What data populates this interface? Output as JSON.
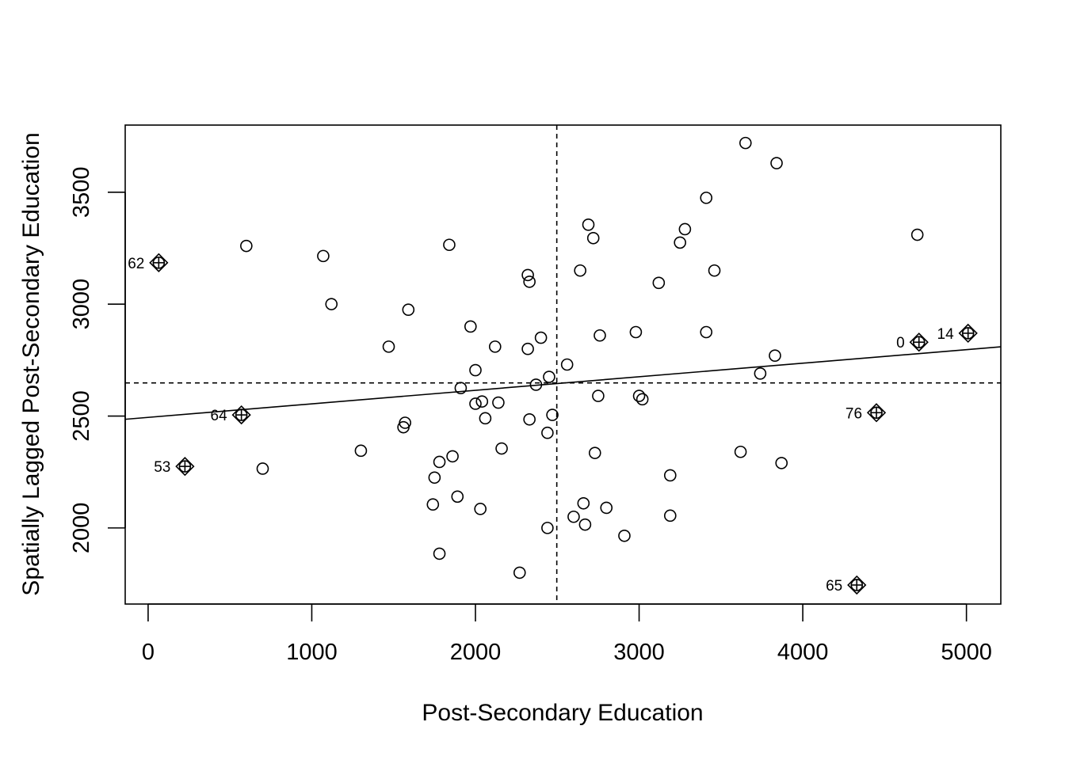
{
  "chart_data": {
    "type": "scatter",
    "title": "",
    "xlabel": "Post-Secondary Education",
    "ylabel": "Spatially Lagged Post-Secondary Education",
    "xlim": [
      -140,
      5210
    ],
    "ylim": [
      1660,
      3800
    ],
    "xticks": [
      0,
      1000,
      2000,
      3000,
      4000,
      5000
    ],
    "yticks": [
      2000,
      2500,
      3000,
      3500
    ],
    "mean_x": 2497,
    "mean_y": 2648,
    "regression": {
      "intercept": 2494,
      "slope": 0.0605
    },
    "grid": false,
    "legend": "none",
    "points": [
      {
        "x": 600,
        "y": 3260
      },
      {
        "x": 1070,
        "y": 3215
      },
      {
        "x": 1840,
        "y": 3265
      },
      {
        "x": 1120,
        "y": 3000
      },
      {
        "x": 1590,
        "y": 2975
      },
      {
        "x": 1470,
        "y": 2810
      },
      {
        "x": 1970,
        "y": 2900
      },
      {
        "x": 2120,
        "y": 2810
      },
      {
        "x": 2000,
        "y": 2705
      },
      {
        "x": 2320,
        "y": 3130
      },
      {
        "x": 2330,
        "y": 3100
      },
      {
        "x": 2320,
        "y": 2800
      },
      {
        "x": 2400,
        "y": 2850
      },
      {
        "x": 2450,
        "y": 2675
      },
      {
        "x": 2370,
        "y": 2640
      },
      {
        "x": 1910,
        "y": 2625
      },
      {
        "x": 2000,
        "y": 2555
      },
      {
        "x": 2040,
        "y": 2565
      },
      {
        "x": 2140,
        "y": 2560
      },
      {
        "x": 2060,
        "y": 2490
      },
      {
        "x": 2330,
        "y": 2485
      },
      {
        "x": 2470,
        "y": 2505
      },
      {
        "x": 2440,
        "y": 2425
      },
      {
        "x": 1570,
        "y": 2470
      },
      {
        "x": 1560,
        "y": 2450
      },
      {
        "x": 1300,
        "y": 2345
      },
      {
        "x": 700,
        "y": 2265
      },
      {
        "x": 1780,
        "y": 2295
      },
      {
        "x": 1860,
        "y": 2320
      },
      {
        "x": 1750,
        "y": 2225
      },
      {
        "x": 2160,
        "y": 2355
      },
      {
        "x": 1740,
        "y": 2105
      },
      {
        "x": 1890,
        "y": 2140
      },
      {
        "x": 2030,
        "y": 2085
      },
      {
        "x": 1780,
        "y": 1885
      },
      {
        "x": 2270,
        "y": 1800
      },
      {
        "x": 2440,
        "y": 2000
      },
      {
        "x": 2560,
        "y": 2730
      },
      {
        "x": 2690,
        "y": 3355
      },
      {
        "x": 2720,
        "y": 3295
      },
      {
        "x": 2640,
        "y": 3150
      },
      {
        "x": 2760,
        "y": 2860
      },
      {
        "x": 2750,
        "y": 2590
      },
      {
        "x": 2980,
        "y": 2875
      },
      {
        "x": 3000,
        "y": 2590
      },
      {
        "x": 3020,
        "y": 2575
      },
      {
        "x": 2730,
        "y": 2335
      },
      {
        "x": 2600,
        "y": 2050
      },
      {
        "x": 2660,
        "y": 2110
      },
      {
        "x": 2670,
        "y": 2015
      },
      {
        "x": 2800,
        "y": 2090
      },
      {
        "x": 2910,
        "y": 1965
      },
      {
        "x": 3120,
        "y": 3095
      },
      {
        "x": 3250,
        "y": 3275
      },
      {
        "x": 3280,
        "y": 3335
      },
      {
        "x": 3410,
        "y": 3475
      },
      {
        "x": 3460,
        "y": 3150
      },
      {
        "x": 3410,
        "y": 2875
      },
      {
        "x": 3650,
        "y": 3720
      },
      {
        "x": 3840,
        "y": 3630
      },
      {
        "x": 3830,
        "y": 2770
      },
      {
        "x": 3740,
        "y": 2690
      },
      {
        "x": 3620,
        "y": 2340
      },
      {
        "x": 3870,
        "y": 2290
      },
      {
        "x": 3190,
        "y": 2235
      },
      {
        "x": 3190,
        "y": 2055
      },
      {
        "x": 4700,
        "y": 3310
      }
    ],
    "influential_points": [
      {
        "label": "62",
        "x": 65,
        "y": 3185,
        "label_side": "left"
      },
      {
        "label": "64",
        "x": 570,
        "y": 2505,
        "label_side": "left"
      },
      {
        "label": "53",
        "x": 225,
        "y": 2275,
        "label_side": "left"
      },
      {
        "label": "0",
        "x": 4710,
        "y": 2830,
        "label_side": "left"
      },
      {
        "label": "14",
        "x": 5010,
        "y": 2870,
        "label_side": "left"
      },
      {
        "label": "76",
        "x": 4450,
        "y": 2515,
        "label_side": "left"
      },
      {
        "label": "65",
        "x": 4330,
        "y": 1745,
        "label_side": "left"
      }
    ]
  }
}
